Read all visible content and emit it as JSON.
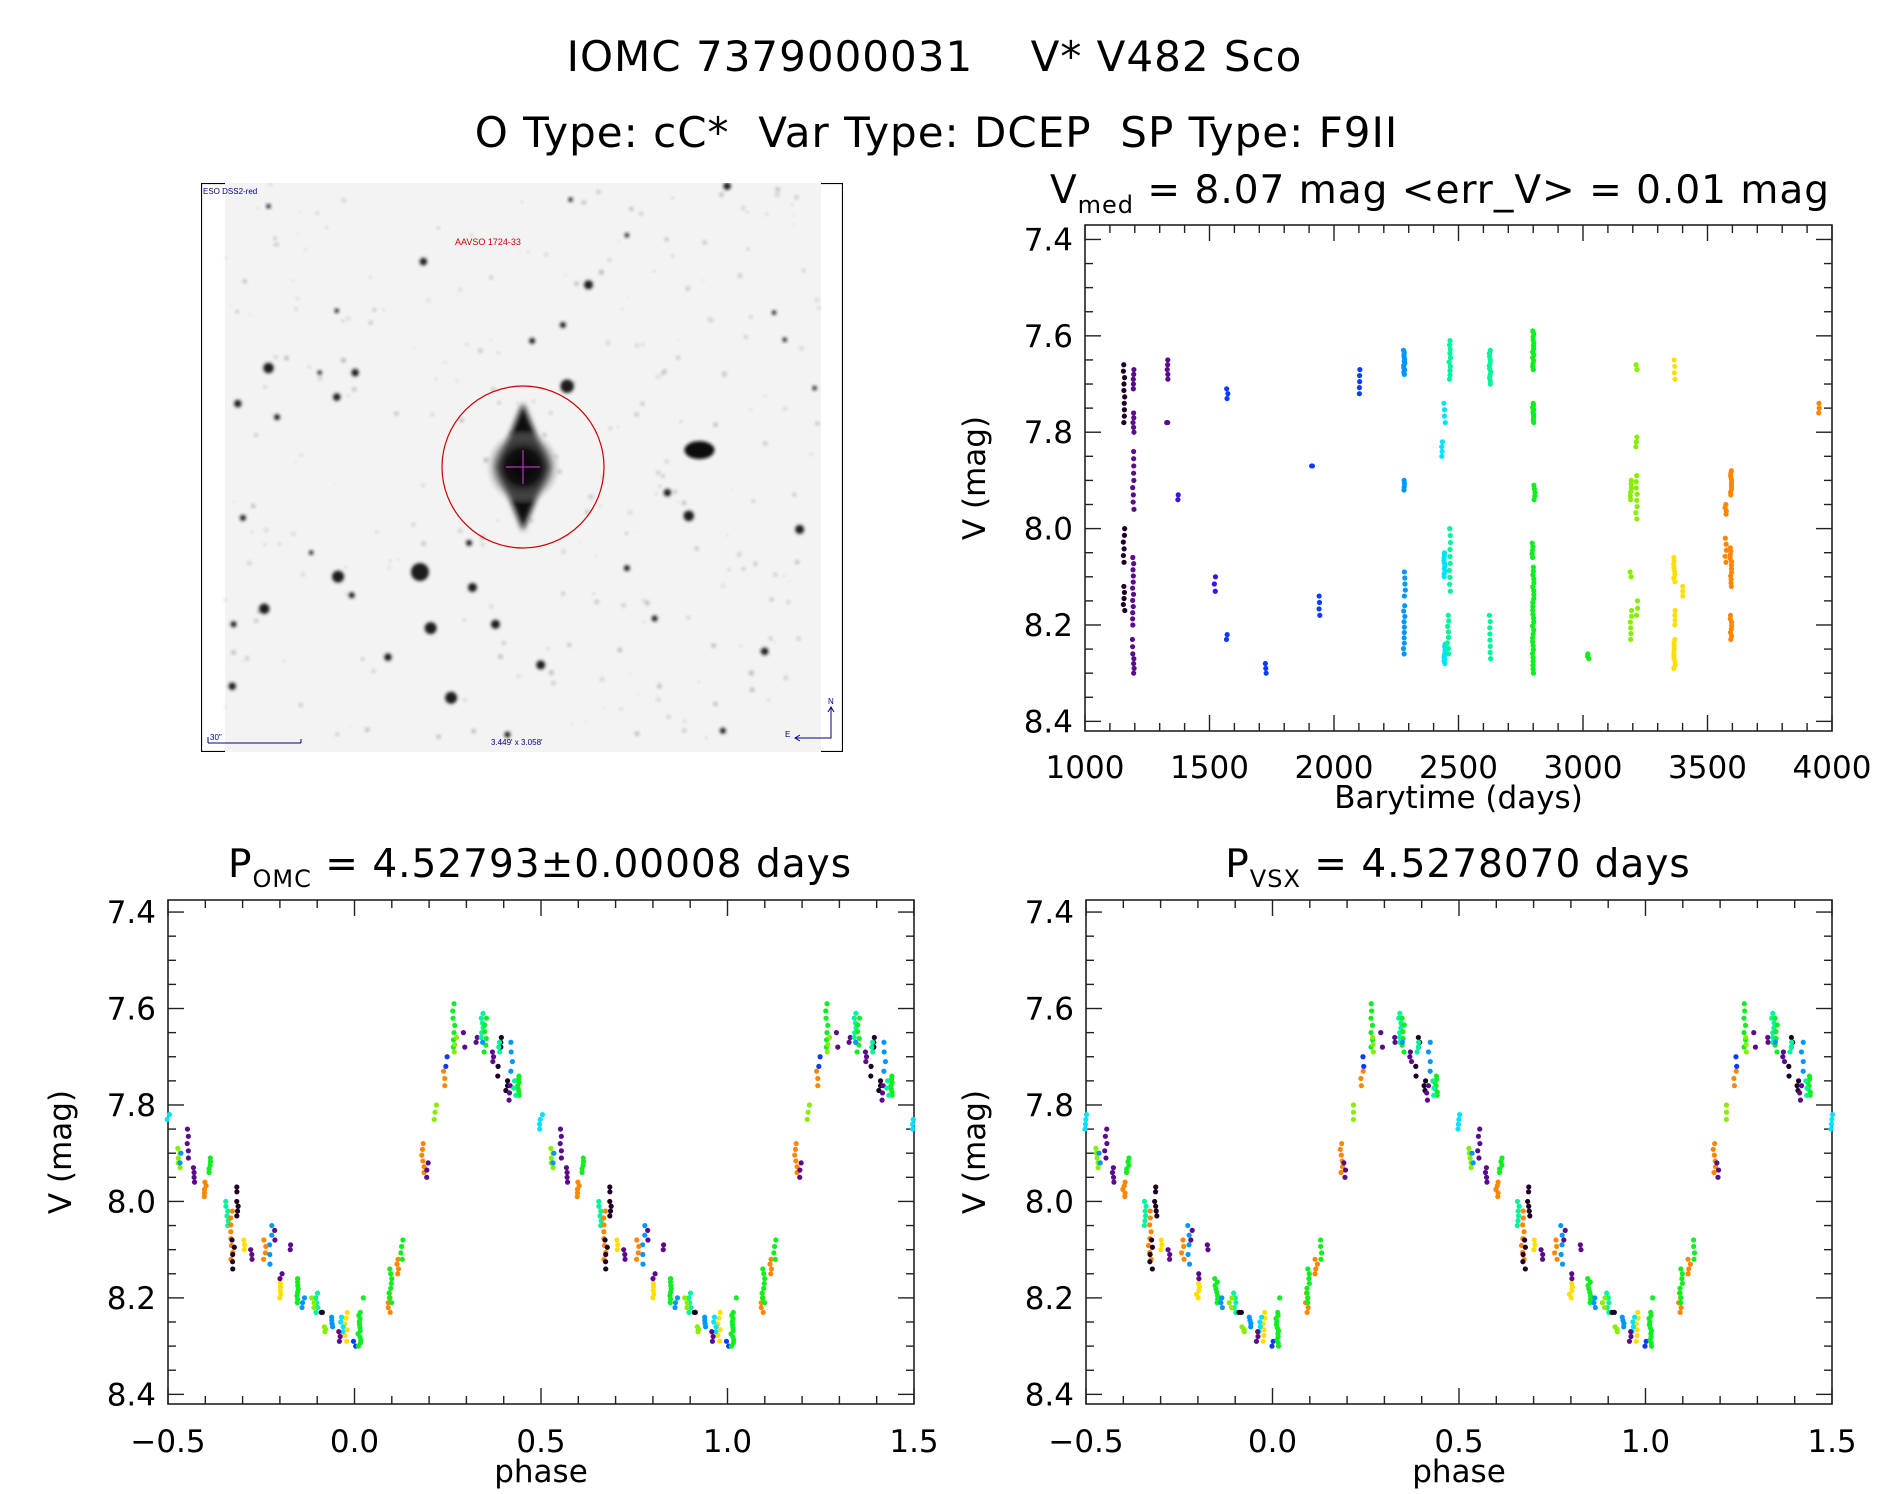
{
  "header": {
    "object_id": "IOMC 7379000031",
    "star_name": "V* V482 Sco",
    "otype": "O Type: cC*",
    "vartype": "Var Type: DCEP",
    "sptype": "SP Type: F9II"
  },
  "image": {
    "survey": "ESO DSS2-red",
    "target_label": "AAVSO 1724-33",
    "scale_label": "30\"",
    "fov_label": "3.449' x 3.058'",
    "north": "N",
    "east": "E"
  },
  "colors": [
    "#1e0026",
    "#5c0a8c",
    "#3c10e8",
    "#0a3cff",
    "#0096ff",
    "#00e2ff",
    "#00f59a",
    "#10ee20",
    "#86ee00",
    "#ffdf00",
    "#ff8600"
  ],
  "chart_data": [
    {
      "type": "scatter",
      "title_main": "V",
      "title_sub": "med",
      "title_rest": " = 8.07 mag <err_V> = 0.01 mag",
      "xlabel": "Barytime (days)",
      "ylabel": "V (mag)",
      "xlim": [
        1000,
        4000
      ],
      "ylim": [
        7.37,
        8.42
      ],
      "y_inverted": true,
      "xticks": [
        1000,
        1500,
        2000,
        2500,
        3000,
        3500,
        4000
      ],
      "xtick_labels": [
        "1000",
        "1500",
        "2000",
        "2500",
        "3000",
        "3500",
        "4000"
      ],
      "yticks": [
        7.4,
        7.6,
        7.8,
        8.0,
        8.2,
        8.4
      ],
      "ytick_labels": [
        "7.4",
        "7.6",
        "7.8",
        "8.0",
        "8.2",
        "8.4"
      ],
      "cluster_format": [
        "barytime",
        "V_min",
        "V_max",
        "n_points",
        "color_index"
      ],
      "clusters": [
        [
          1157,
          7.66,
          7.78,
          10,
          0
        ],
        [
          1157,
          8.0,
          8.07,
          6,
          0
        ],
        [
          1157,
          8.12,
          8.17,
          5,
          0
        ],
        [
          1194,
          7.67,
          7.71,
          5,
          1
        ],
        [
          1194,
          7.76,
          7.8,
          5,
          1
        ],
        [
          1194,
          7.84,
          7.96,
          9,
          1
        ],
        [
          1194,
          8.06,
          8.2,
          12,
          1
        ],
        [
          1190,
          8.23,
          8.26,
          3,
          1
        ],
        [
          1198,
          8.27,
          8.3,
          4,
          1
        ],
        [
          1330,
          7.65,
          7.69,
          5,
          1
        ],
        [
          1330,
          7.78,
          7.78,
          2,
          1
        ],
        [
          1373,
          7.93,
          7.94,
          2,
          2
        ],
        [
          1521,
          8.1,
          8.13,
          3,
          2
        ],
        [
          1571,
          7.71,
          7.73,
          3,
          3
        ],
        [
          1571,
          8.22,
          8.23,
          2,
          3
        ],
        [
          1726,
          8.28,
          8.3,
          3,
          3
        ],
        [
          1911,
          7.87,
          7.87,
          2,
          3
        ],
        [
          1940,
          8.14,
          8.18,
          4,
          3
        ],
        [
          2103,
          7.67,
          7.72,
          5,
          3
        ],
        [
          2282,
          7.63,
          7.68,
          12,
          4
        ],
        [
          2282,
          7.9,
          7.92,
          4,
          4
        ],
        [
          2285,
          8.09,
          8.14,
          5,
          4
        ],
        [
          2282,
          8.16,
          8.26,
          10,
          4
        ],
        [
          2433,
          7.82,
          7.85,
          4,
          5
        ],
        [
          2444,
          7.74,
          7.78,
          4,
          5
        ],
        [
          2444,
          8.05,
          8.1,
          10,
          5
        ],
        [
          2444,
          8.24,
          8.28,
          10,
          5
        ],
        [
          2465,
          7.61,
          7.69,
          10,
          6
        ],
        [
          2465,
          8.0,
          8.13,
          10,
          6
        ],
        [
          2458,
          8.18,
          8.26,
          8,
          6
        ],
        [
          2627,
          7.63,
          7.7,
          12,
          6
        ],
        [
          2627,
          8.18,
          8.27,
          8,
          6
        ],
        [
          2800,
          7.59,
          7.67,
          14,
          7
        ],
        [
          2800,
          7.74,
          7.78,
          10,
          7
        ],
        [
          2805,
          7.91,
          7.94,
          5,
          7
        ],
        [
          2797,
          8.03,
          8.06,
          5,
          7
        ],
        [
          2800,
          8.08,
          8.3,
          28,
          7
        ],
        [
          3021,
          8.26,
          8.27,
          3,
          7
        ],
        [
          3192,
          7.9,
          7.94,
          6,
          8
        ],
        [
          3192,
          8.09,
          8.1,
          2,
          8
        ],
        [
          3192,
          8.17,
          8.23,
          6,
          8
        ],
        [
          3215,
          7.66,
          7.67,
          2,
          8
        ],
        [
          3215,
          7.81,
          7.83,
          3,
          8
        ],
        [
          3215,
          7.89,
          7.98,
          8,
          8
        ],
        [
          3218,
          8.15,
          8.18,
          3,
          8
        ],
        [
          3367,
          7.65,
          7.69,
          4,
          9
        ],
        [
          3367,
          8.06,
          8.11,
          8,
          9
        ],
        [
          3370,
          8.17,
          8.2,
          4,
          9
        ],
        [
          3367,
          8.23,
          8.29,
          10,
          9
        ],
        [
          3400,
          8.12,
          8.14,
          3,
          9
        ],
        [
          3573,
          7.95,
          7.97,
          4,
          10
        ],
        [
          3573,
          8.02,
          8.07,
          5,
          10
        ],
        [
          3594,
          7.88,
          7.93,
          10,
          10
        ],
        [
          3594,
          8.04,
          8.12,
          12,
          10
        ],
        [
          3594,
          8.18,
          8.23,
          8,
          10
        ],
        [
          3948,
          7.74,
          7.76,
          3,
          10
        ]
      ]
    },
    {
      "type": "scatter",
      "title_main": "P",
      "title_sub": "OMC",
      "title_rest": " = 4.52793±0.00008 days",
      "xlabel": "phase",
      "ylabel": "V (mag)",
      "xlim": [
        -0.5,
        1.5
      ],
      "ylim": [
        7.375,
        8.42
      ],
      "y_inverted": true,
      "xticks": [
        -0.5,
        0.0,
        0.5,
        1.0,
        1.5
      ],
      "xtick_labels": [
        "−0.5",
        "0.0",
        "0.5",
        "1.0",
        "1.5"
      ],
      "yticks": [
        7.4,
        7.6,
        7.8,
        8.0,
        8.2,
        8.4
      ],
      "ytick_labels": [
        "7.4",
        "7.6",
        "7.8",
        "8.0",
        "8.2",
        "8.4"
      ],
      "cluster_format": [
        "phase",
        "V_min",
        "V_max",
        "n_points",
        "color_index"
      ],
      "clusters": [
        [
          0.5,
          7.82,
          7.85,
          4,
          5
        ],
        [
          0.553,
          7.85,
          7.91,
          5,
          1
        ],
        [
          0.53,
          7.89,
          7.93,
          5,
          8
        ],
        [
          0.535,
          7.9,
          7.92,
          2,
          4
        ],
        [
          0.572,
          7.93,
          7.96,
          4,
          1
        ],
        [
          0.612,
          7.91,
          7.94,
          5,
          7
        ],
        [
          0.601,
          7.96,
          7.99,
          5,
          10
        ],
        [
          0.684,
          7.97,
          7.98,
          2,
          0
        ],
        [
          0.687,
          8.0,
          8.03,
          4,
          0
        ],
        [
          0.658,
          8.0,
          8.05,
          6,
          6
        ],
        [
          0.671,
          8.02,
          8.12,
          8,
          10
        ],
        [
          0.704,
          8.08,
          8.1,
          3,
          9
        ],
        [
          0.675,
          8.08,
          8.14,
          5,
          0
        ],
        [
          0.724,
          8.1,
          8.12,
          3,
          1
        ],
        [
          0.776,
          8.05,
          8.13,
          5,
          4
        ],
        [
          0.759,
          8.08,
          8.12,
          4,
          10
        ],
        [
          0.783,
          8.06,
          8.08,
          2,
          1
        ],
        [
          0.825,
          8.09,
          8.1,
          2,
          1
        ],
        [
          0.8,
          8.17,
          8.2,
          5,
          9
        ],
        [
          0.803,
          8.15,
          8.16,
          2,
          1
        ],
        [
          0.849,
          8.16,
          8.21,
          8,
          7
        ],
        [
          0.899,
          8.19,
          8.23,
          5,
          6
        ],
        [
          0.888,
          8.2,
          8.22,
          3,
          8
        ],
        [
          0.862,
          8.2,
          8.22,
          3,
          4
        ],
        [
          0.914,
          8.23,
          8.23,
          2,
          0
        ],
        [
          0.921,
          8.26,
          8.27,
          3,
          8
        ],
        [
          0.941,
          8.24,
          8.26,
          4,
          4
        ],
        [
          0.978,
          8.23,
          8.29,
          6,
          9
        ],
        [
          0.967,
          8.24,
          8.27,
          4,
          5
        ],
        [
          0.96,
          8.27,
          8.29,
          3,
          1
        ],
        [
          0.0,
          8.29,
          8.3,
          2,
          3
        ],
        [
          0.013,
          8.23,
          8.3,
          12,
          7
        ],
        [
          0.02,
          8.2,
          8.2,
          1,
          7
        ],
        [
          0.092,
          8.19,
          8.23,
          5,
          10
        ],
        [
          0.096,
          8.14,
          8.21,
          8,
          7
        ],
        [
          0.118,
          8.12,
          8.15,
          4,
          10
        ],
        [
          0.128,
          8.08,
          8.12,
          4,
          7
        ],
        [
          0.184,
          7.88,
          7.94,
          6,
          10
        ],
        [
          0.195,
          7.92,
          7.95,
          3,
          1
        ],
        [
          0.217,
          7.8,
          7.83,
          3,
          8
        ],
        [
          0.241,
          7.73,
          7.76,
          3,
          10
        ],
        [
          0.246,
          7.7,
          7.72,
          2,
          3
        ],
        [
          0.266,
          7.59,
          7.68,
          7,
          7
        ],
        [
          0.27,
          7.66,
          7.69,
          3,
          8
        ],
        [
          0.292,
          7.65,
          7.68,
          2,
          1
        ],
        [
          0.326,
          7.66,
          7.67,
          2,
          1
        ],
        [
          0.342,
          7.61,
          7.67,
          7,
          6
        ],
        [
          0.35,
          7.62,
          7.69,
          6,
          7
        ],
        [
          0.345,
          7.67,
          7.67,
          1,
          4
        ],
        [
          0.37,
          7.69,
          7.71,
          3,
          1
        ],
        [
          0.391,
          7.66,
          7.68,
          3,
          0
        ],
        [
          0.388,
          7.67,
          7.69,
          3,
          6
        ],
        [
          0.422,
          7.67,
          7.73,
          4,
          4
        ],
        [
          0.383,
          7.72,
          7.74,
          2,
          0
        ],
        [
          0.408,
          7.75,
          7.77,
          3,
          0
        ],
        [
          0.417,
          7.76,
          7.79,
          3,
          1
        ],
        [
          0.438,
          7.74,
          7.78,
          7,
          7
        ],
        [
          0.43,
          7.75,
          7.78,
          3,
          6
        ]
      ]
    },
    {
      "type": "scatter",
      "title_main": "P",
      "title_sub": "VSX",
      "title_rest": " = 4.5278070 days",
      "xlabel": "phase",
      "ylabel": "V (mag)",
      "xlim": [
        -0.5,
        1.5
      ],
      "ylim": [
        7.375,
        8.42
      ],
      "y_inverted": true,
      "xticks": [
        -0.5,
        0.0,
        0.5,
        1.0,
        1.5
      ],
      "xtick_labels": [
        "−0.5",
        "0.0",
        "0.5",
        "1.0",
        "1.5"
      ],
      "yticks": [
        7.4,
        7.6,
        7.8,
        8.0,
        8.2,
        8.4
      ],
      "ytick_labels": [
        "7.4",
        "7.6",
        "7.8",
        "8.0",
        "8.2",
        "8.4"
      ],
      "cluster_format": [
        "phase",
        "V_min",
        "V_max",
        "n_points",
        "color_index"
      ],
      "clusters": [
        [
          0.5,
          7.82,
          7.85,
          4,
          5
        ],
        [
          0.553,
          7.85,
          7.91,
          5,
          1
        ],
        [
          0.53,
          7.89,
          7.93,
          5,
          8
        ],
        [
          0.535,
          7.9,
          7.92,
          2,
          4
        ],
        [
          0.572,
          7.93,
          7.96,
          4,
          1
        ],
        [
          0.612,
          7.91,
          7.94,
          5,
          7
        ],
        [
          0.601,
          7.96,
          7.99,
          5,
          10
        ],
        [
          0.684,
          7.97,
          7.98,
          2,
          0
        ],
        [
          0.687,
          8.0,
          8.03,
          4,
          0
        ],
        [
          0.658,
          8.0,
          8.05,
          6,
          6
        ],
        [
          0.671,
          8.02,
          8.12,
          8,
          10
        ],
        [
          0.704,
          8.08,
          8.1,
          3,
          9
        ],
        [
          0.675,
          8.08,
          8.14,
          5,
          0
        ],
        [
          0.724,
          8.1,
          8.12,
          3,
          1
        ],
        [
          0.776,
          8.05,
          8.13,
          5,
          4
        ],
        [
          0.759,
          8.08,
          8.12,
          4,
          10
        ],
        [
          0.783,
          8.06,
          8.08,
          2,
          1
        ],
        [
          0.825,
          8.09,
          8.1,
          2,
          1
        ],
        [
          0.8,
          8.17,
          8.2,
          5,
          9
        ],
        [
          0.803,
          8.15,
          8.16,
          2,
          1
        ],
        [
          0.849,
          8.16,
          8.21,
          8,
          7
        ],
        [
          0.899,
          8.19,
          8.23,
          5,
          6
        ],
        [
          0.888,
          8.2,
          8.22,
          3,
          8
        ],
        [
          0.862,
          8.2,
          8.22,
          3,
          4
        ],
        [
          0.914,
          8.23,
          8.23,
          2,
          0
        ],
        [
          0.921,
          8.26,
          8.27,
          3,
          8
        ],
        [
          0.941,
          8.24,
          8.26,
          4,
          4
        ],
        [
          0.978,
          8.23,
          8.29,
          6,
          9
        ],
        [
          0.967,
          8.24,
          8.27,
          4,
          5
        ],
        [
          0.96,
          8.27,
          8.29,
          3,
          1
        ],
        [
          0.0,
          8.29,
          8.3,
          2,
          3
        ],
        [
          0.013,
          8.23,
          8.3,
          12,
          7
        ],
        [
          0.02,
          8.2,
          8.2,
          1,
          7
        ],
        [
          0.092,
          8.19,
          8.23,
          5,
          10
        ],
        [
          0.096,
          8.14,
          8.21,
          8,
          7
        ],
        [
          0.118,
          8.12,
          8.15,
          4,
          10
        ],
        [
          0.128,
          8.08,
          8.12,
          4,
          7
        ],
        [
          0.184,
          7.88,
          7.94,
          6,
          10
        ],
        [
          0.195,
          7.92,
          7.95,
          3,
          1
        ],
        [
          0.217,
          7.8,
          7.83,
          3,
          8
        ],
        [
          0.241,
          7.73,
          7.76,
          3,
          10
        ],
        [
          0.246,
          7.7,
          7.72,
          2,
          3
        ],
        [
          0.266,
          7.59,
          7.68,
          7,
          7
        ],
        [
          0.27,
          7.66,
          7.69,
          3,
          8
        ],
        [
          0.292,
          7.65,
          7.68,
          2,
          1
        ],
        [
          0.326,
          7.66,
          7.67,
          2,
          1
        ],
        [
          0.342,
          7.61,
          7.67,
          7,
          6
        ],
        [
          0.35,
          7.62,
          7.69,
          6,
          7
        ],
        [
          0.345,
          7.67,
          7.67,
          1,
          4
        ],
        [
          0.37,
          7.69,
          7.71,
          3,
          1
        ],
        [
          0.391,
          7.66,
          7.68,
          3,
          0
        ],
        [
          0.388,
          7.67,
          7.69,
          3,
          6
        ],
        [
          0.422,
          7.67,
          7.73,
          4,
          4
        ],
        [
          0.383,
          7.72,
          7.74,
          2,
          0
        ],
        [
          0.408,
          7.75,
          7.77,
          3,
          0
        ],
        [
          0.417,
          7.76,
          7.79,
          3,
          1
        ],
        [
          0.438,
          7.74,
          7.78,
          7,
          7
        ],
        [
          0.43,
          7.75,
          7.78,
          3,
          6
        ]
      ]
    }
  ]
}
